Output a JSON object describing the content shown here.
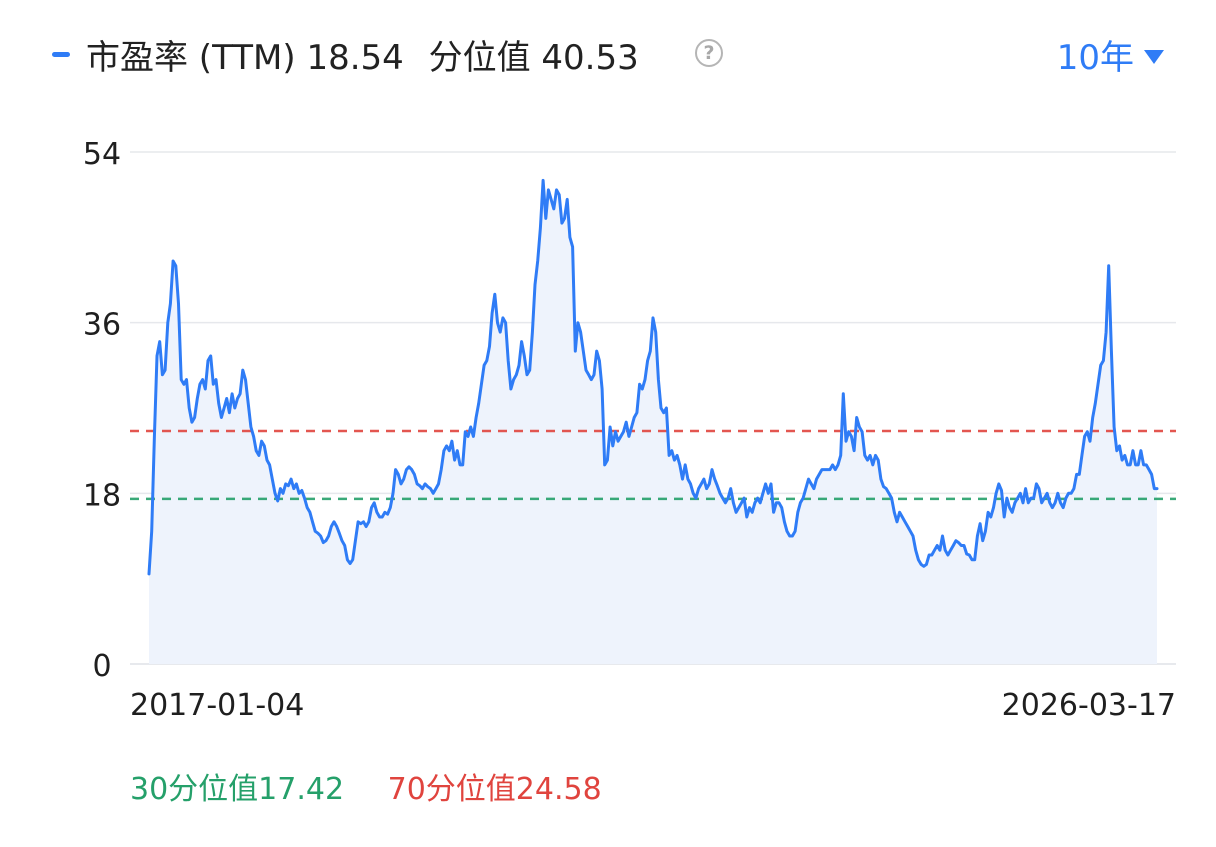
{
  "header": {
    "title": "市盈率 (TTM)",
    "current_value": "18.54",
    "percentile_label": "分位值",
    "percentile_value": "40.53",
    "help_icon": "question-circle-icon",
    "range_label": "10年",
    "range_icon": "caret-down-icon"
  },
  "colors": {
    "line": "#2f7cf6",
    "area": "#eef3fc",
    "p30": "#25a06a",
    "p70": "#e0443e",
    "grid": "#e6e8ec",
    "text": "#1f1f1f",
    "accent": "#2f7cf6"
  },
  "chart_data": {
    "type": "area",
    "title": "市盈率 (TTM)",
    "ylim": [
      0,
      54
    ],
    "yticks": [
      "0",
      "18",
      "36",
      "54"
    ],
    "xticks": [
      "2017-01-04",
      "2026-03-17"
    ],
    "grid": true,
    "reference_lines": [
      {
        "name": "30分位值",
        "value": 17.42
      },
      {
        "name": "70分位值",
        "value": 24.58
      }
    ],
    "series": [
      {
        "x_range": [
          "2017-01-04",
          "2026-03-17"
        ],
        "values": [
          9.5,
          14,
          24,
          32.5,
          34,
          30.5,
          31,
          36,
          38,
          42.5,
          42,
          38,
          30,
          29.5,
          30,
          27,
          25.5,
          26,
          28,
          29.5,
          30,
          29,
          32,
          32.5,
          29.5,
          30,
          27.5,
          26,
          27,
          28,
          26.5,
          28.5,
          27,
          28,
          28.5,
          31,
          30,
          27.5,
          25,
          24,
          22.5,
          22,
          23.5,
          23,
          21.5,
          21,
          19.5,
          18,
          17.2,
          18.5,
          18,
          19,
          18.8,
          19.5,
          18.5,
          19,
          18,
          18.3,
          17.5,
          16.5,
          16,
          15,
          14,
          13.8,
          13.5,
          12.8,
          13,
          13.5,
          14.5,
          15,
          14.5,
          13.8,
          13,
          12.5,
          11,
          10.6,
          11,
          13,
          15,
          14.8,
          15,
          14.5,
          15,
          16.5,
          17,
          16,
          15.5,
          15.5,
          16,
          15.8,
          16.5,
          18,
          20.5,
          20,
          19,
          19.5,
          20.5,
          20.8,
          20.5,
          20,
          19,
          18.8,
          18.5,
          19,
          18.7,
          18.5,
          18,
          18.5,
          19,
          20.5,
          22.5,
          23,
          22.5,
          23.5,
          21.5,
          22.5,
          21,
          21,
          24.5,
          24,
          25,
          24,
          26,
          27.5,
          29.5,
          31.5,
          32,
          33.5,
          37,
          39,
          36,
          35,
          36.5,
          36,
          32,
          29,
          30,
          30.5,
          31.5,
          34,
          32.5,
          30.5,
          31,
          35,
          40,
          42.5,
          46,
          51,
          47,
          50,
          49,
          48,
          50,
          49.5,
          46.5,
          47,
          49,
          45,
          44,
          33,
          36,
          35,
          33,
          31,
          30.5,
          30,
          30.5,
          33,
          32,
          29,
          21,
          21.5,
          25,
          23,
          24.5,
          23.5,
          24,
          24.5,
          25.5,
          24,
          25,
          26,
          26.5,
          29.5,
          29,
          30,
          32,
          33,
          36.5,
          35,
          30,
          27,
          26.5,
          27,
          22,
          22.5,
          21.5,
          22,
          21,
          19.5,
          21,
          19.5,
          19,
          18,
          17.5,
          18.5,
          19,
          19.5,
          18.5,
          19,
          20.5,
          19.5,
          18.8,
          18,
          17.5,
          17,
          17.5,
          18.5,
          17,
          16,
          16.5,
          17,
          17.5,
          15.5,
          16.5,
          16,
          17,
          17.5,
          17,
          18,
          19,
          18,
          19,
          16,
          17,
          17,
          16.5,
          15,
          14,
          13.5,
          13.5,
          14,
          16,
          17,
          17.5,
          18.5,
          19.5,
          19,
          18.5,
          19.5,
          20,
          20.5,
          20.5,
          20.5,
          20.5,
          21,
          20.5,
          21,
          22,
          28.5,
          23.5,
          24.5,
          24,
          22.5,
          26,
          25,
          24.5,
          22,
          21.5,
          22,
          21,
          22,
          21.5,
          19.5,
          18.7,
          18.5,
          18,
          17.5,
          16,
          15,
          16,
          15.5,
          15,
          14.5,
          14,
          13.5,
          12,
          11,
          10.5,
          10.3,
          10.5,
          11.5,
          11.5,
          12,
          12.5,
          12,
          13.5,
          12,
          11.5,
          12,
          12.5,
          13,
          12.8,
          12.5,
          12.5,
          11.6,
          11.5,
          11,
          11,
          13.5,
          14.8,
          13,
          14,
          16,
          15.5,
          16.5,
          18,
          19,
          18.3,
          15.5,
          17.5,
          16.5,
          16,
          17,
          17.5,
          18,
          17,
          18.5,
          17,
          17.5,
          17.5,
          19,
          18.5,
          17,
          17.5,
          18,
          17,
          16.5,
          17,
          18,
          17,
          16.5,
          17.5,
          18,
          18,
          18.5,
          20,
          20,
          22,
          24,
          24.5,
          23.5,
          26,
          27.5,
          29.5,
          31.5,
          32,
          35,
          42,
          33,
          25,
          22.5,
          23,
          21.5,
          22,
          21,
          21,
          22.5,
          21,
          21,
          22.5,
          21,
          21,
          20.5,
          20,
          18.5,
          18.5
        ]
      }
    ]
  },
  "footer": {
    "p30_label": "30分位值17.42",
    "p70_label": "70分位值24.58"
  }
}
